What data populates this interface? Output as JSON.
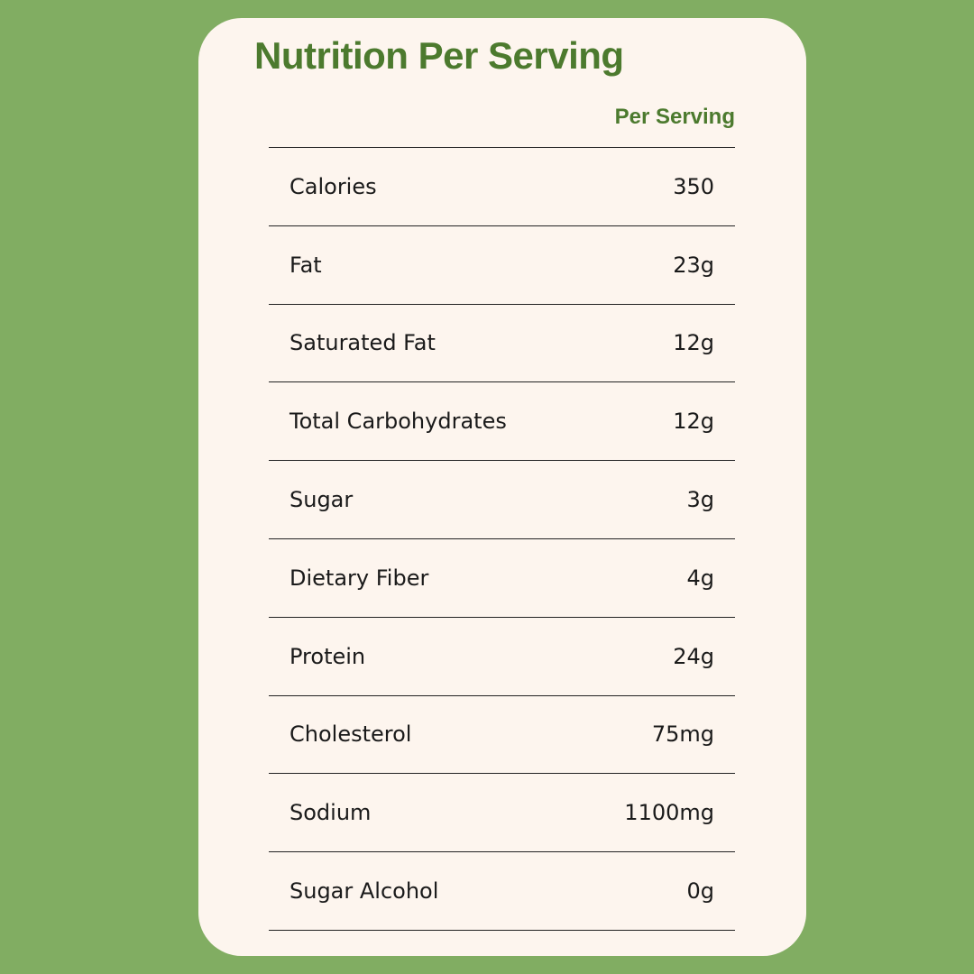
{
  "header": {
    "title": "Nutrition Per Serving"
  },
  "table": {
    "column_header": "Per Serving",
    "rows": [
      [
        "Calories",
        "350"
      ],
      [
        "Fat",
        "23g"
      ],
      [
        "Saturated Fat",
        "12g"
      ],
      [
        "Total Carbohydrates",
        "12g"
      ],
      [
        "Sugar",
        "3g"
      ],
      [
        "Dietary Fiber",
        "4g"
      ],
      [
        "Protein",
        "24g"
      ],
      [
        "Cholesterol",
        "75mg"
      ],
      [
        "Sodium",
        "1100mg"
      ],
      [
        "Sugar Alcohol",
        "0g"
      ]
    ]
  }
}
